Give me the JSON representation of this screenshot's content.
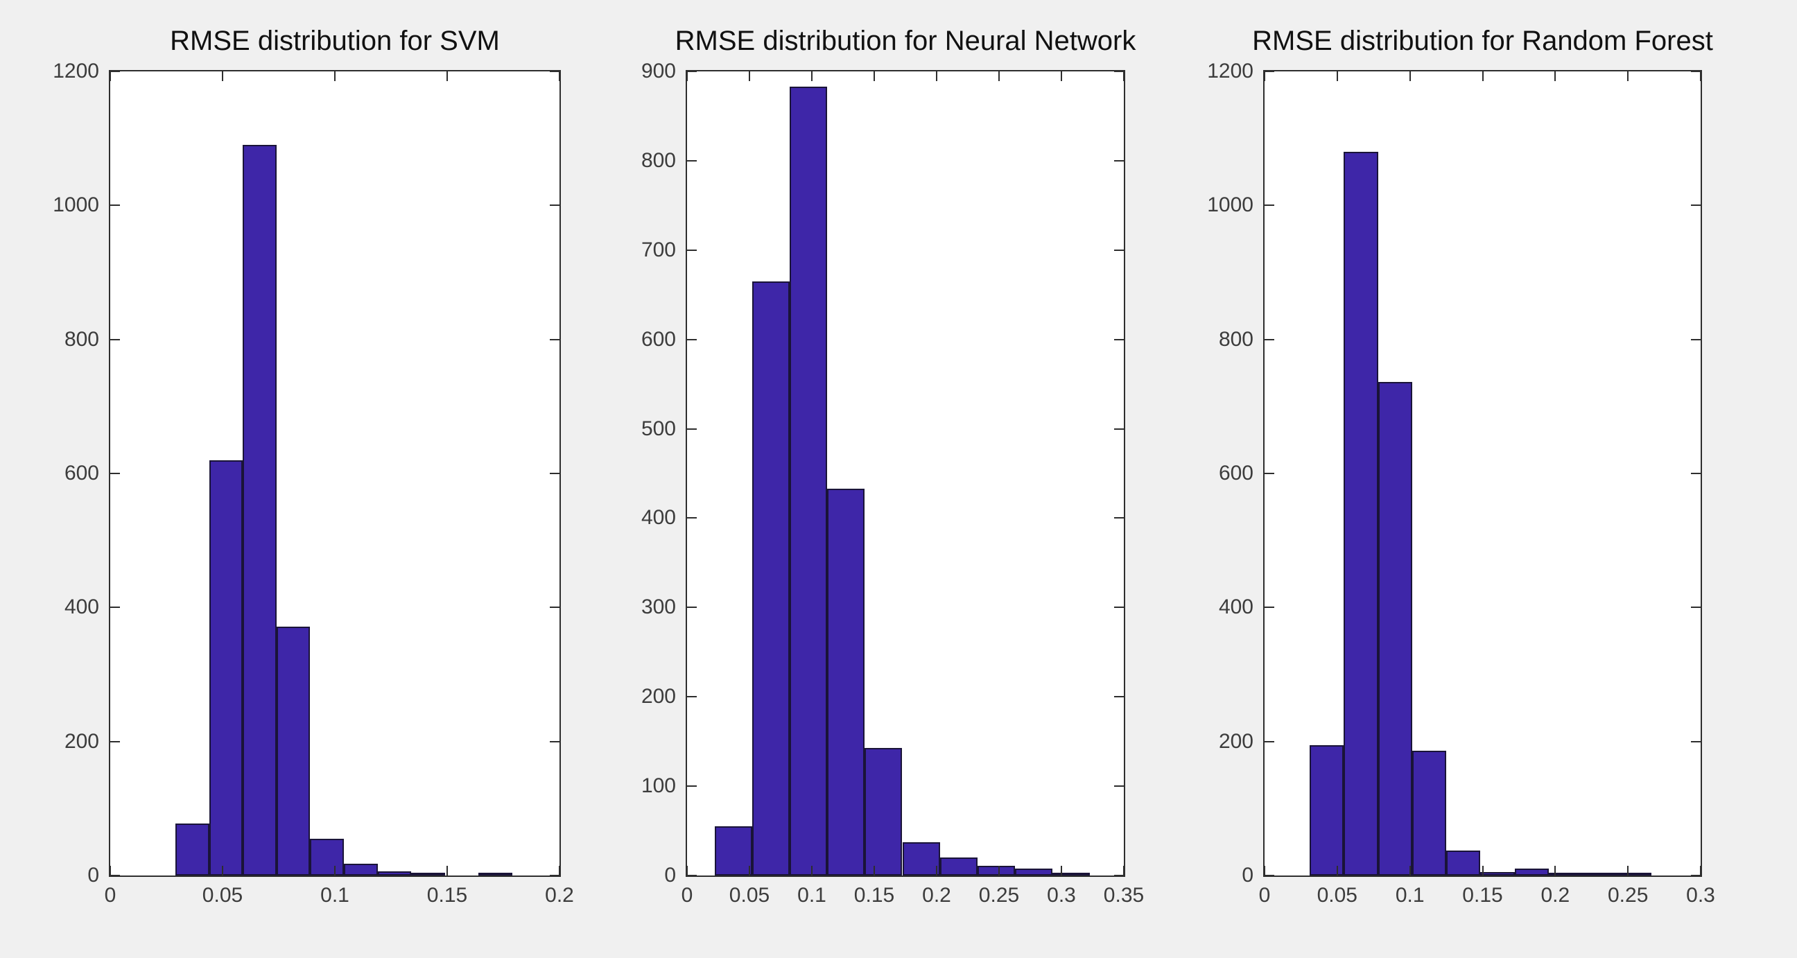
{
  "figure": {
    "background": "#f0f0f0",
    "plot_background": "#ffffff",
    "axis_color": "#2e2e2e",
    "tick_label_color": "#3c3c3c",
    "title_color": "#111111",
    "bar_fill": "#3E26A8",
    "bar_edge": "#1a1438"
  },
  "chart_data": [
    {
      "type": "bar",
      "title": "RMSE distribution for SVM",
      "xlabel": "",
      "ylabel": "",
      "xlim": [
        0,
        0.2
      ],
      "ylim": [
        0,
        1200
      ],
      "x_ticks": [
        0,
        0.05,
        0.1,
        0.15,
        0.2
      ],
      "y_ticks": [
        0,
        200,
        400,
        600,
        800,
        1000,
        1200
      ],
      "grid": false,
      "legend": null,
      "bin_start": 0.029,
      "bin_width": 0.015,
      "values": [
        78,
        620,
        1090,
        371,
        55,
        18,
        6,
        4,
        0,
        3
      ]
    },
    {
      "type": "bar",
      "title": "RMSE distribution for Neural Network",
      "xlabel": "",
      "ylabel": "",
      "xlim": [
        0,
        0.35
      ],
      "ylim": [
        0,
        900
      ],
      "x_ticks": [
        0,
        0.05,
        0.1,
        0.15,
        0.2,
        0.25,
        0.3,
        0.35
      ],
      "y_ticks": [
        0,
        100,
        200,
        300,
        400,
        500,
        600,
        700,
        800,
        900
      ],
      "grid": false,
      "legend": null,
      "bin_start": 0.022,
      "bin_width": 0.0301,
      "values": [
        55,
        665,
        883,
        433,
        143,
        37,
        20,
        11,
        8,
        2
      ]
    },
    {
      "type": "bar",
      "title": "RMSE distribution for Random Forest",
      "xlabel": "",
      "ylabel": "",
      "xlim": [
        0,
        0.3
      ],
      "ylim": [
        0,
        1200
      ],
      "x_ticks": [
        0,
        0.05,
        0.1,
        0.15,
        0.2,
        0.25,
        0.3
      ],
      "y_ticks": [
        0,
        200,
        400,
        600,
        800,
        1000,
        1200
      ],
      "grid": false,
      "legend": null,
      "bin_start": 0.031,
      "bin_width": 0.0235,
      "values": [
        195,
        1080,
        737,
        186,
        37,
        5,
        10,
        3,
        1,
        4
      ]
    }
  ]
}
